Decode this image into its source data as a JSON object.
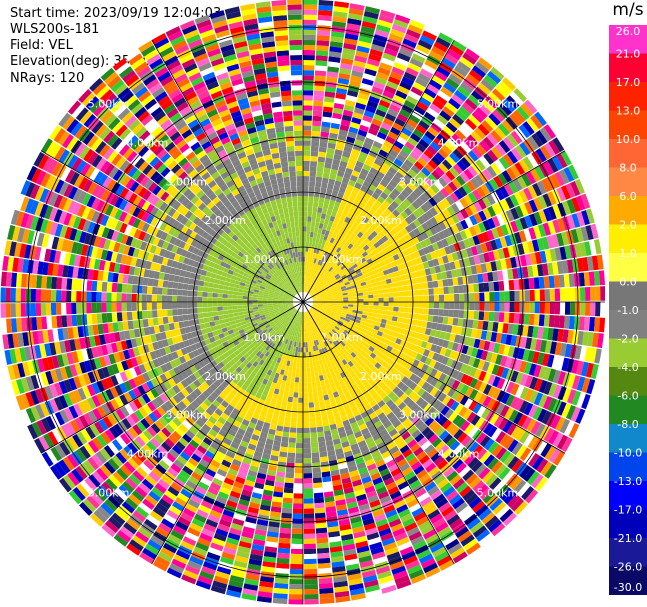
{
  "header": {
    "start_time": "Start time: 2023/09/19 12:04:03",
    "instrument": "WLS200s-181",
    "field": "Field: VEL",
    "elevation": "Elevation(deg): 35.30",
    "nrays": "NRays: 120"
  },
  "chart_data": {
    "type": "ppi-polar",
    "field": "VEL",
    "units": "m/s",
    "n_rays": 120,
    "range_rings_km": [
      1.0,
      2.0,
      3.0,
      4.0,
      5.0
    ],
    "range_ring_labels": [
      "1.00km",
      "2.00km",
      "3.00km",
      "4.00km",
      "5.00km"
    ],
    "max_range_km": 5.5,
    "rays_deg": [
      0,
      30,
      60,
      90,
      120,
      150,
      180,
      210,
      240,
      270,
      300,
      330
    ],
    "description_regions": [
      {
        "range_km": [
          0.0,
          2.2
        ],
        "dominant_values": [
          2.0,
          -2.0
        ]
      },
      {
        "range_km": [
          2.2,
          3.2
        ],
        "dominant_values": [
          0.0,
          -2.0,
          2.0
        ]
      },
      {
        "range_km": [
          3.2,
          5.5
        ],
        "dominant_values": "noise"
      }
    ],
    "colorbar": {
      "ticks": [
        "26.0",
        "21.0",
        "17.0",
        "13.0",
        "10.0",
        "8.0",
        "6.0",
        "2.0",
        "1.0",
        "0.0",
        "-1.0",
        "-2.0",
        "-4.0",
        "-6.0",
        "-8.0",
        "-10.0",
        "-13.0",
        "-17.0",
        "-21.0",
        "-26.0",
        "-30.0"
      ],
      "colors": [
        "#ff33cc",
        "#ff0033",
        "#ff2200",
        "#ff4400",
        "#ff6633",
        "#ff8844",
        "#ffaa00",
        "#ffee00",
        "#ffff44",
        "#777777",
        "#808080",
        "#99cc33",
        "#558811",
        "#228822",
        "#1188cc",
        "#0044ee",
        "#0000ff",
        "#0000bb",
        "#1a1a99",
        "#0a0a66"
      ]
    }
  }
}
